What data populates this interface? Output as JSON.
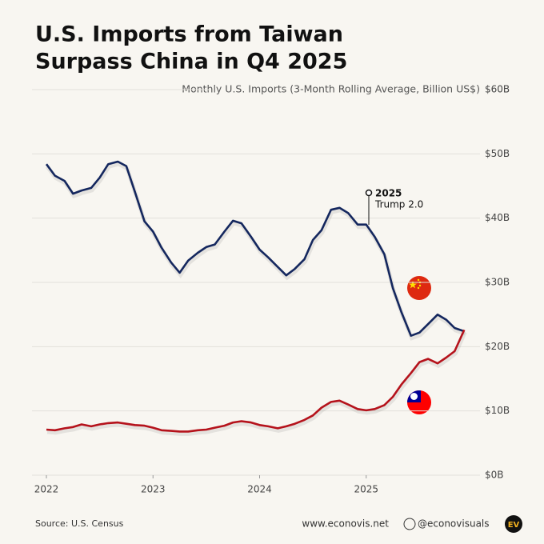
{
  "chart_data": {
    "type": "line",
    "title": [
      "U.S. Imports from Taiwan",
      "Surpass China in Q4 2025"
    ],
    "subtitle": "Monthly U.S. Imports (3-Month Rolling Average, Billion US$)",
    "x": [
      2022.0,
      2022.08,
      2022.17,
      2022.25,
      2022.33,
      2022.42,
      2022.5,
      2022.58,
      2022.67,
      2022.75,
      2022.83,
      2022.92,
      2023.0,
      2023.08,
      2023.17,
      2023.25,
      2023.33,
      2023.42,
      2023.5,
      2023.58,
      2023.67,
      2023.75,
      2023.83,
      2023.92,
      2024.0,
      2024.08,
      2024.17,
      2024.25,
      2024.33,
      2024.42,
      2024.5,
      2024.58,
      2024.67,
      2024.75,
      2024.83,
      2024.92,
      2025.0,
      2025.08,
      2025.17,
      2025.25,
      2025.33,
      2025.42,
      2025.5,
      2025.58,
      2025.67,
      2025.75,
      2025.83,
      2025.92
    ],
    "series": [
      {
        "name": "China",
        "color": "#14275e",
        "values": [
          48.4,
          46.6,
          45.8,
          43.8,
          44.3,
          44.7,
          46.3,
          48.4,
          48.8,
          48.1,
          44.1,
          39.5,
          37.9,
          35.4,
          33.1,
          31.5,
          33.4,
          34.6,
          35.5,
          35.9,
          37.9,
          39.6,
          39.2,
          37.1,
          35.1,
          33.9,
          32.4,
          31.1,
          32.1,
          33.6,
          36.6,
          38.1,
          41.3,
          41.6,
          40.8,
          39.0,
          39.0,
          37.1,
          34.4,
          29.1,
          25.4,
          21.7,
          22.2,
          23.5,
          25.0,
          24.2,
          22.9,
          22.4
        ]
      },
      {
        "name": "Taiwan",
        "color": "#b5121b",
        "values": [
          7.1,
          7.0,
          7.3,
          7.5,
          7.9,
          7.6,
          7.9,
          8.1,
          8.2,
          8.0,
          7.8,
          7.7,
          7.4,
          7.0,
          6.9,
          6.8,
          6.8,
          7.0,
          7.1,
          7.4,
          7.7,
          8.2,
          8.4,
          8.2,
          7.8,
          7.6,
          7.3,
          7.6,
          8.0,
          8.6,
          9.3,
          10.5,
          11.4,
          11.6,
          11.0,
          10.3,
          10.1,
          10.3,
          10.9,
          12.2,
          14.1,
          15.9,
          17.6,
          18.1,
          17.4,
          18.3,
          19.3,
          22.6
        ]
      }
    ],
    "xlim": [
      2022,
      2026
    ],
    "xticks": [
      2022,
      2023,
      2024,
      2025
    ],
    "ylim": [
      0,
      60
    ],
    "yticks": [
      {
        "value": 0,
        "label": "$0B"
      },
      {
        "value": 10,
        "label": "$10B"
      },
      {
        "value": 20,
        "label": "$20B"
      },
      {
        "value": 30,
        "label": "$30B"
      },
      {
        "value": 40,
        "label": "$40B"
      },
      {
        "value": 50,
        "label": "$50B"
      },
      {
        "value": 60,
        "label": "$60B"
      }
    ],
    "grid": true,
    "annotation": {
      "title": "2025",
      "text": "Trump 2.0"
    },
    "source": "Source: U.S. Census",
    "website": "www.econovis.net",
    "handle": "@econovisuals",
    "logo": "EV"
  }
}
